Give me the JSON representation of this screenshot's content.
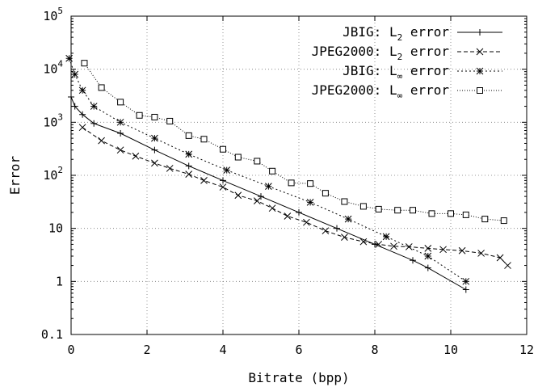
{
  "chart_data": {
    "type": "line",
    "xlabel": "Bitrate (bpp)",
    "ylabel": "Error",
    "xlim": [
      0,
      12
    ],
    "ylim": [
      0.1,
      100000
    ],
    "xscale": "linear",
    "yscale": "log",
    "grid": true,
    "legend_position": "top-right",
    "x_ticks": [
      "0",
      "2",
      "4",
      "6",
      "8",
      "10",
      "12"
    ],
    "y_ticks": [
      {
        "base": "0.1",
        "exp": ""
      },
      {
        "base": "1",
        "exp": ""
      },
      {
        "base": "10",
        "exp": ""
      },
      {
        "base": "10",
        "exp": "2"
      },
      {
        "base": "10",
        "exp": "3"
      },
      {
        "base": "10",
        "exp": "4"
      },
      {
        "base": "10",
        "exp": "5"
      }
    ],
    "series": [
      {
        "name": "JBIG: L2 error",
        "legend_main": "JBIG: L",
        "legend_sub": "2",
        "legend_tail": " error",
        "marker": "plus",
        "dash": "",
        "points": [
          [
            0,
            3000
          ],
          [
            0.1,
            2000
          ],
          [
            0.3,
            1400
          ],
          [
            0.6,
            950
          ],
          [
            1.3,
            620
          ],
          [
            2.2,
            300
          ],
          [
            3.1,
            150
          ],
          [
            4.0,
            80
          ],
          [
            5.0,
            40
          ],
          [
            6.0,
            20
          ],
          [
            7.0,
            10
          ],
          [
            8.0,
            5
          ],
          [
            9.0,
            2.5
          ],
          [
            9.4,
            1.8
          ],
          [
            10.4,
            0.7
          ]
        ]
      },
      {
        "name": "JPEG2000: L2 error",
        "legend_main": "JPEG2000: L",
        "legend_sub": "2",
        "legend_tail": " error",
        "marker": "x",
        "dash": "5,3",
        "points": [
          [
            0.3,
            800
          ],
          [
            0.8,
            450
          ],
          [
            1.3,
            300
          ],
          [
            1.7,
            230
          ],
          [
            2.2,
            170
          ],
          [
            2.6,
            135
          ],
          [
            3.1,
            105
          ],
          [
            3.5,
            80
          ],
          [
            4.0,
            60
          ],
          [
            4.4,
            42
          ],
          [
            4.9,
            33
          ],
          [
            5.3,
            24
          ],
          [
            5.7,
            17
          ],
          [
            6.2,
            13
          ],
          [
            6.7,
            9
          ],
          [
            7.2,
            6.8
          ],
          [
            7.7,
            5.6
          ],
          [
            8.1,
            5
          ],
          [
            8.5,
            4.6
          ],
          [
            8.9,
            4.5
          ],
          [
            9.4,
            4.2
          ],
          [
            9.8,
            4
          ],
          [
            10.3,
            3.8
          ],
          [
            10.8,
            3.4
          ],
          [
            11.3,
            2.8
          ],
          [
            11.5,
            2
          ]
        ]
      },
      {
        "name": "JBIG: L∞ error",
        "legend_main": "JBIG: L",
        "legend_sub": "∞",
        "legend_tail": " error",
        "marker": "star",
        "dash": "2,3",
        "points": [
          [
            -0.05,
            16000
          ],
          [
            0.1,
            8000
          ],
          [
            0.3,
            4000
          ],
          [
            0.6,
            2000
          ],
          [
            1.3,
            1000
          ],
          [
            2.2,
            500
          ],
          [
            3.1,
            250
          ],
          [
            4.1,
            125
          ],
          [
            5.2,
            62
          ],
          [
            6.3,
            31
          ],
          [
            7.3,
            15
          ],
          [
            8.3,
            7
          ],
          [
            9.4,
            3
          ],
          [
            10.4,
            1
          ]
        ]
      },
      {
        "name": "JPEG2000: L∞ error",
        "legend_main": "JPEG2000: L",
        "legend_sub": "∞",
        "legend_tail": " error",
        "marker": "square",
        "dash": "1,2",
        "points": [
          [
            0.35,
            13000
          ],
          [
            0.8,
            4500
          ],
          [
            1.3,
            2400
          ],
          [
            1.8,
            1350
          ],
          [
            2.2,
            1250
          ],
          [
            2.6,
            1050
          ],
          [
            3.1,
            560
          ],
          [
            3.5,
            480
          ],
          [
            4.0,
            310
          ],
          [
            4.4,
            220
          ],
          [
            4.9,
            185
          ],
          [
            5.3,
            120
          ],
          [
            5.8,
            72
          ],
          [
            6.3,
            70
          ],
          [
            6.7,
            46
          ],
          [
            7.2,
            32
          ],
          [
            7.7,
            26
          ],
          [
            8.1,
            23
          ],
          [
            8.6,
            22
          ],
          [
            9.0,
            22
          ],
          [
            9.5,
            19
          ],
          [
            10.0,
            19
          ],
          [
            10.4,
            18
          ],
          [
            10.9,
            15
          ],
          [
            11.4,
            14
          ]
        ]
      }
    ]
  }
}
